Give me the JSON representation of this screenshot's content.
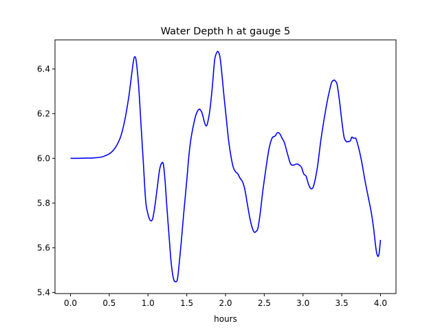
{
  "chart_data": {
    "type": "line",
    "title": "Water Depth h at gauge 5",
    "xlabel": "hours",
    "ylabel": "",
    "xlim": [
      -0.2,
      4.2
    ],
    "ylim": [
      5.395,
      6.53
    ],
    "xticks": [
      0.0,
      0.5,
      1.0,
      1.5,
      2.0,
      2.5,
      3.0,
      3.5,
      4.0
    ],
    "xtick_labels": [
      "0.0",
      "0.5",
      "1.0",
      "1.5",
      "2.0",
      "2.5",
      "3.0",
      "3.5",
      "4.0"
    ],
    "yticks": [
      5.4,
      5.6,
      5.8,
      6.0,
      6.2,
      6.4
    ],
    "ytick_labels": [
      "5.4",
      "5.6",
      "5.8",
      "6.0",
      "6.2",
      "6.4"
    ],
    "grid": false,
    "series": [
      {
        "color": "#0000ff",
        "x": [
          0.0,
          0.1,
          0.2,
          0.3,
          0.4,
          0.45,
          0.5,
          0.55,
          0.6,
          0.65,
          0.7,
          0.75,
          0.78,
          0.81,
          0.83,
          0.85,
          0.88,
          0.91,
          0.94,
          0.97,
          1.0,
          1.03,
          1.06,
          1.09,
          1.12,
          1.15,
          1.18,
          1.2,
          1.22,
          1.24,
          1.27,
          1.3,
          1.33,
          1.36,
          1.38,
          1.4,
          1.43,
          1.46,
          1.5,
          1.53,
          1.56,
          1.6,
          1.63,
          1.66,
          1.68,
          1.7,
          1.73,
          1.75,
          1.77,
          1.8,
          1.83,
          1.86,
          1.89,
          1.91,
          1.93,
          1.95,
          1.98,
          2.01,
          2.04,
          2.07,
          2.1,
          2.13,
          2.16,
          2.19,
          2.22,
          2.25,
          2.28,
          2.31,
          2.34,
          2.37,
          2.4,
          2.42,
          2.45,
          2.48,
          2.52,
          2.56,
          2.6,
          2.64,
          2.67,
          2.7,
          2.73,
          2.76,
          2.8,
          2.84,
          2.88,
          2.92,
          2.95,
          2.98,
          3.01,
          3.04,
          3.07,
          3.1,
          3.13,
          3.16,
          3.19,
          3.23,
          3.27,
          3.31,
          3.34,
          3.37,
          3.4,
          3.42,
          3.44,
          3.47,
          3.5,
          3.53,
          3.56,
          3.58,
          3.61,
          3.63,
          3.65,
          3.68,
          3.7,
          3.73,
          3.76,
          3.8,
          3.84,
          3.88,
          3.91,
          3.94,
          3.96,
          3.98,
          4.0
        ],
        "y": [
          6.0,
          6.0,
          6.001,
          6.002,
          6.006,
          6.012,
          6.02,
          6.035,
          6.06,
          6.1,
          6.17,
          6.27,
          6.35,
          6.43,
          6.455,
          6.43,
          6.32,
          6.15,
          5.98,
          5.81,
          5.75,
          5.722,
          5.73,
          5.79,
          5.87,
          5.95,
          5.98,
          5.97,
          5.9,
          5.8,
          5.66,
          5.53,
          5.46,
          5.448,
          5.46,
          5.52,
          5.63,
          5.75,
          5.9,
          6.02,
          6.1,
          6.17,
          6.205,
          6.22,
          6.215,
          6.2,
          6.16,
          6.145,
          6.16,
          6.22,
          6.32,
          6.44,
          6.475,
          6.475,
          6.45,
          6.39,
          6.28,
          6.18,
          6.08,
          6.01,
          5.96,
          5.94,
          5.93,
          5.91,
          5.895,
          5.86,
          5.8,
          5.74,
          5.695,
          5.67,
          5.675,
          5.69,
          5.76,
          5.85,
          5.95,
          6.04,
          6.09,
          6.1,
          6.115,
          6.11,
          6.09,
          6.07,
          6.02,
          5.975,
          5.97,
          5.975,
          5.97,
          5.96,
          5.93,
          5.92,
          5.885,
          5.865,
          5.87,
          5.91,
          5.97,
          6.08,
          6.17,
          6.25,
          6.3,
          6.34,
          6.35,
          6.345,
          6.33,
          6.26,
          6.17,
          6.095,
          6.075,
          6.075,
          6.078,
          6.095,
          6.09,
          6.09,
          6.07,
          6.03,
          5.98,
          5.9,
          5.83,
          5.76,
          5.69,
          5.6,
          5.565,
          5.57,
          5.635
        ]
      }
    ]
  }
}
